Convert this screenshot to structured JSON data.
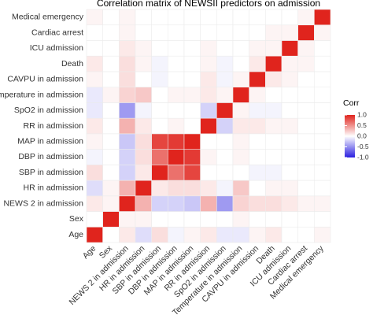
{
  "chart_data": {
    "type": "heatmap",
    "title": "Correlation matrix of NEWSII predictors on admission",
    "legend_title": "Corr",
    "x": [
      "Age",
      "Sex",
      "NEWS 2 in admission",
      "HR in admission",
      "SBP in admission",
      "DBP in admission",
      "MAP in admission",
      "RR in admission",
      "SpO2 in admission",
      "Temperature in admission",
      "CAVPU in admission",
      "Death",
      "ICU admission",
      "Cardiac arrest",
      "Medical emergency"
    ],
    "y": [
      "Age",
      "Sex",
      "NEWS 2 in admission",
      "HR in admission",
      "SBP in admission",
      "DBP in admission",
      "MAP in admission",
      "RR in admission",
      "SpO2 in admission",
      "Temperature in admission",
      "CAVPU in admission",
      "Death",
      "ICU admission",
      "Cardiac arrest",
      "Medical emergency"
    ],
    "values": [
      [
        1,
        0,
        0.1,
        -0.15,
        0.15,
        -0.05,
        0.05,
        0.1,
        -0.1,
        -0.1,
        0.05,
        0.1,
        0,
        0,
        0.05
      ],
      [
        0,
        1,
        0.05,
        0.05,
        0,
        0,
        0,
        0,
        0,
        0.05,
        0,
        0,
        0,
        0,
        0
      ],
      [
        0.1,
        0.05,
        1,
        0.35,
        -0.2,
        -0.2,
        -0.25,
        0.35,
        -0.45,
        0.2,
        0.15,
        0.15,
        0.1,
        0.05,
        0.05
      ],
      [
        -0.15,
        0.05,
        0.35,
        1,
        0.1,
        0.15,
        0.15,
        0.1,
        -0.05,
        0.25,
        0,
        0.05,
        0.05,
        0,
        0
      ],
      [
        0.15,
        0,
        -0.2,
        0.1,
        1,
        0.65,
        0.85,
        0,
        0,
        0,
        -0.05,
        -0.05,
        0,
        0,
        0
      ],
      [
        -0.05,
        0,
        -0.2,
        0.15,
        0.65,
        1,
        0.9,
        0.05,
        0,
        0.05,
        0,
        0,
        0,
        0,
        0
      ],
      [
        0.05,
        0,
        -0.25,
        0.15,
        0.85,
        0.9,
        1,
        0,
        0,
        0.05,
        0,
        0,
        0,
        0,
        0
      ],
      [
        0.1,
        0,
        0.35,
        0.1,
        0,
        0.05,
        0,
        1,
        -0.2,
        0.1,
        0.1,
        0.05,
        0.05,
        0,
        0
      ],
      [
        -0.1,
        0,
        -0.45,
        -0.05,
        0,
        0,
        0,
        -0.2,
        1,
        0.05,
        -0.05,
        -0.05,
        0,
        0,
        0
      ],
      [
        -0.1,
        0.05,
        0.2,
        0.25,
        0,
        0.05,
        0.05,
        0.1,
        0.05,
        1,
        0.05,
        0,
        0,
        0,
        0
      ],
      [
        0.05,
        0,
        0.15,
        0,
        -0.05,
        0,
        0,
        0.1,
        -0.05,
        0.05,
        1,
        0.1,
        0.05,
        0,
        0
      ],
      [
        0.1,
        0,
        0.15,
        0.05,
        -0.05,
        0,
        0,
        0.05,
        -0.05,
        0,
        0.1,
        1,
        0.05,
        0.05,
        0
      ],
      [
        0,
        0,
        0.1,
        0.05,
        0,
        0,
        0,
        0.05,
        0,
        0,
        0.05,
        0.05,
        1,
        0.05,
        0
      ],
      [
        0,
        0,
        0.05,
        0,
        0,
        0,
        0,
        0,
        0,
        0,
        0,
        0.05,
        0.05,
        1,
        0.05
      ],
      [
        0.05,
        0,
        0.05,
        0,
        0,
        0,
        0,
        0,
        0,
        0,
        0,
        0,
        0,
        0.05,
        1
      ]
    ],
    "colors": {
      "low": "#2a1fe0",
      "mid": "#ffffff",
      "high": "#e0241d"
    },
    "clim": [
      -1,
      1
    ],
    "cticks": [
      {
        "value": -1,
        "label": "-1.0"
      },
      {
        "value": -0.5,
        "label": "-0.5"
      },
      {
        "value": 0,
        "label": "0.0"
      },
      {
        "value": 0.5,
        "label": "0.5"
      },
      {
        "value": 1,
        "label": "1.0"
      }
    ]
  }
}
